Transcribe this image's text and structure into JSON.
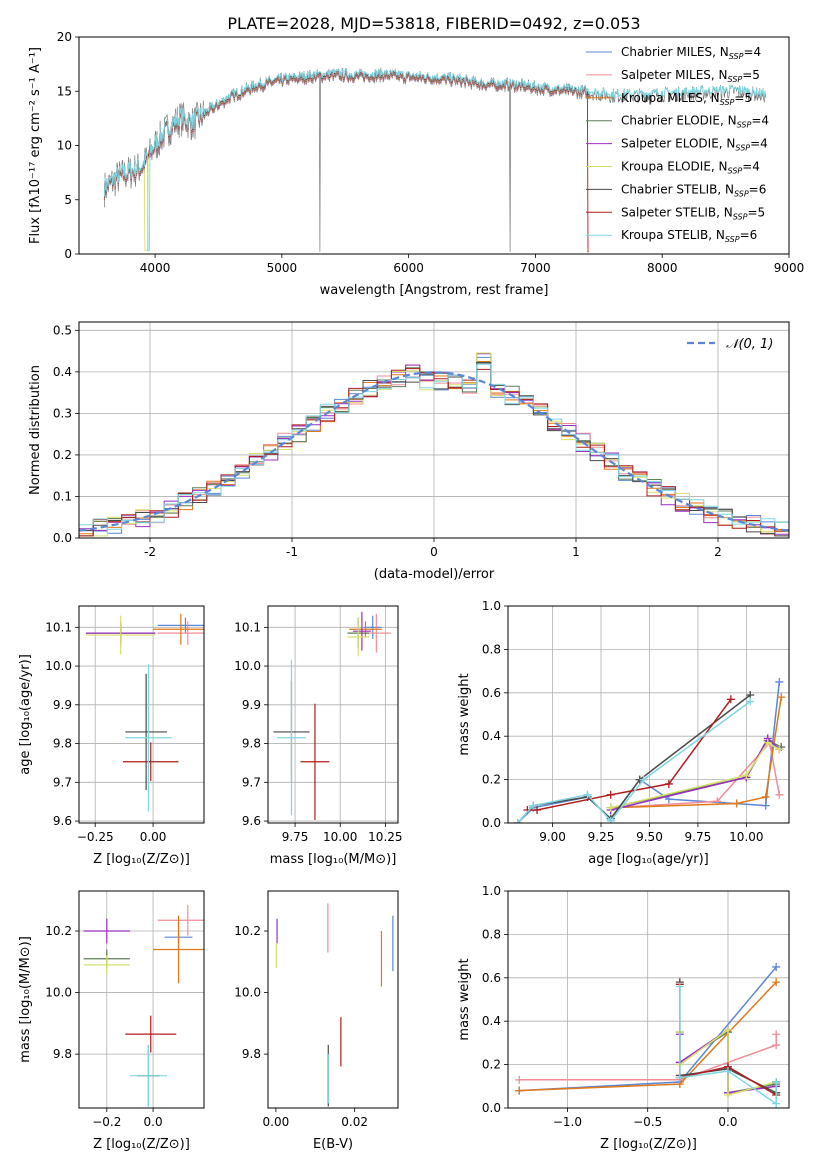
{
  "colors": [
    "#5a87d6",
    "#f08d96",
    "#e0791a",
    "#5f7e5a",
    "#9a2fc2",
    "#d6e06b",
    "#4a4a4a",
    "#b01c1c",
    "#7fd6e2"
  ],
  "chart_data": [
    {
      "id": "spectrum",
      "type": "line",
      "title": "PLATE=2028, MJD=53818, FIBERID=0492, z=0.053",
      "xlabel": "wavelength [Angstrom, rest frame]",
      "ylabel": "Flux [fλ10⁻¹⁷ erg cm⁻² s⁻¹ A⁻¹]",
      "xlim": [
        3400,
        9000
      ],
      "ylim": [
        0,
        20
      ],
      "xticks": [
        4000,
        5000,
        6000,
        7000,
        8000,
        9000
      ],
      "yticks": [
        0,
        5,
        10,
        15,
        20
      ],
      "grid": false,
      "legend_placement": "top-right",
      "observed": {
        "x": [
          3600,
          3700,
          3800,
          3900,
          3950,
          4000,
          4100,
          4200,
          4300,
          4400,
          4600,
          4800,
          5000,
          5200,
          5400,
          5600,
          5800,
          6000,
          6200,
          6400,
          6600,
          6800,
          7000,
          7200,
          7400,
          7600,
          7800,
          8000,
          8200,
          8400,
          8600,
          8800
        ],
        "y": [
          6.0,
          7.0,
          7.5,
          8.0,
          9.0,
          10.0,
          11.5,
          12.5,
          12.0,
          13.0,
          14.5,
          15.5,
          16.0,
          16.3,
          16.5,
          16.4,
          16.5,
          16.3,
          16.2,
          16.0,
          15.6,
          15.6,
          15.3,
          15.1,
          14.9,
          14.6,
          14.6,
          14.7,
          14.8,
          14.9,
          15.0,
          14.6
        ]
      },
      "model_end_x": 7420,
      "series": [
        {
          "name": "Chabrier MILES, N<sub>SSP</sub>=4"
        },
        {
          "name": "Salpeter MILES, N<sub>SSP</sub>=5"
        },
        {
          "name": "Kroupa MILES, N<sub>SSP</sub>=5"
        },
        {
          "name": "Chabrier ELODIE, N<sub>SSP</sub>=4"
        },
        {
          "name": "Salpeter ELODIE, N<sub>SSP</sub>=4"
        },
        {
          "name": "Kroupa ELODIE, N<sub>SSP</sub>=4"
        },
        {
          "name": "Chabrier STELIB, N<sub>SSP</sub>=6"
        },
        {
          "name": "Salpeter STELIB, N<sub>SSP</sub>=5"
        },
        {
          "name": "Kroupa STELIB, N<sub>SSP</sub>=6"
        }
      ],
      "legend_labels": [
        {
          "pre": "Chabrier MILES, N",
          "sub": "SSP",
          "post": "=4"
        },
        {
          "pre": "Salpeter MILES, N",
          "sub": "SSP",
          "post": "=5"
        },
        {
          "pre": "Kroupa MILES, N",
          "sub": "SSP",
          "post": "=5"
        },
        {
          "pre": "Chabrier ELODIE, N",
          "sub": "SSP",
          "post": "=4"
        },
        {
          "pre": "Salpeter ELODIE, N",
          "sub": "SSP",
          "post": "=4"
        },
        {
          "pre": "Kroupa ELODIE, N",
          "sub": "SSP",
          "post": "=4"
        },
        {
          "pre": "Chabrier STELIB, N",
          "sub": "SSP",
          "post": "=6"
        },
        {
          "pre": "Salpeter STELIB, N",
          "sub": "SSP",
          "post": "=5"
        },
        {
          "pre": "Kroupa STELIB, N",
          "sub": "SSP",
          "post": "=6"
        }
      ]
    },
    {
      "id": "residuals",
      "type": "histogram",
      "xlabel": "(data-model)/error",
      "ylabel": "Normed distribution",
      "xlim": [
        -2.5,
        2.5
      ],
      "ylim": [
        0,
        0.52
      ],
      "xticks": [
        -2,
        -1,
        0,
        1,
        2
      ],
      "yticks": [
        0.0,
        0.1,
        0.2,
        0.3,
        0.4,
        0.5
      ],
      "grid": true,
      "bin_width": 0.1,
      "reference": {
        "name": "𝒩(0, 1)",
        "style": "dashed",
        "mean": 0,
        "sigma": 1
      },
      "legend_placement": "top-right"
    },
    {
      "id": "age_vs_Z",
      "type": "errorbar",
      "xlabel": "Z [log₁₀(Z/Z⊙)]",
      "ylabel": "age  [log₁₀(age/yr)]",
      "xlim": [
        -0.32,
        0.22
      ],
      "ylim": [
        9.595,
        10.155
      ],
      "xticks": [
        -0.25,
        0.0
      ],
      "xtick_labels": [
        "−0.25",
        "0.00"
      ],
      "yticks": [
        9.6,
        9.7,
        9.8,
        9.9,
        10.0,
        10.1
      ],
      "grid": true,
      "points": [
        {
          "c": 0,
          "x": 0.14,
          "y": 10.105,
          "xerr": 0.12,
          "yerr": 0.02
        },
        {
          "c": 1,
          "x": 0.15,
          "y": 10.085,
          "xerr": 0.13,
          "yerr": 0.03
        },
        {
          "c": 2,
          "x": 0.12,
          "y": 10.095,
          "xerr": 0.12,
          "yerr": 0.04
        },
        {
          "c": 3,
          "x": -0.14,
          "y": 10.085,
          "xerr": 0.15,
          "yerr": 0.02
        },
        {
          "c": 4,
          "x": -0.14,
          "y": 10.085,
          "xerr": 0.15,
          "yerr": 0.03
        },
        {
          "c": 5,
          "x": -0.14,
          "y": 10.08,
          "xerr": 0.15,
          "yerr": 0.05
        },
        {
          "c": 6,
          "x": -0.03,
          "y": 9.83,
          "xerr": 0.09,
          "yerr": 0.15
        },
        {
          "c": 7,
          "x": -0.01,
          "y": 9.753,
          "xerr": 0.12,
          "yerr": 0.05
        },
        {
          "c": 8,
          "x": -0.02,
          "y": 9.815,
          "xerr": 0.1,
          "yerr": 0.19
        }
      ]
    },
    {
      "id": "age_vs_mass",
      "type": "errorbar",
      "xlabel": "mass [log₁₀(M/M⊙)]",
      "ylabel": "",
      "xlim": [
        9.6,
        10.32
      ],
      "ylim": [
        9.595,
        10.155
      ],
      "xticks": [
        9.75,
        10.0,
        10.25
      ],
      "xtick_labels": [
        "9.75",
        "10.00",
        "10.25"
      ],
      "yticks": [
        9.6,
        9.7,
        9.8,
        9.9,
        10.0,
        10.1
      ],
      "grid": true,
      "points": [
        {
          "c": 0,
          "x": 10.18,
          "y": 10.1,
          "xerr": 0.05,
          "yerr": 0.03
        },
        {
          "c": 1,
          "x": 10.2,
          "y": 10.085,
          "xerr": 0.08,
          "yerr": 0.05
        },
        {
          "c": 2,
          "x": 10.14,
          "y": 10.095,
          "xerr": 0.09,
          "yerr": 0.02
        },
        {
          "c": 3,
          "x": 10.1,
          "y": 10.085,
          "xerr": 0.06,
          "yerr": 0.04
        },
        {
          "c": 4,
          "x": 10.12,
          "y": 10.09,
          "xerr": 0.05,
          "yerr": 0.05
        },
        {
          "c": 5,
          "x": 10.1,
          "y": 10.075,
          "xerr": 0.06,
          "yerr": 0.05
        },
        {
          "c": 6,
          "x": 9.73,
          "y": 9.83,
          "xerr": 0.1,
          "yerr": 0.13
        },
        {
          "c": 7,
          "x": 9.86,
          "y": 9.753,
          "xerr": 0.08,
          "yerr": 0.15
        },
        {
          "c": 8,
          "x": 9.73,
          "y": 9.815,
          "xerr": 0.08,
          "yerr": 0.2
        }
      ]
    },
    {
      "id": "mass_weight_vs_age",
      "type": "line",
      "xlabel": "age  [log₁₀(age/yr)]",
      "ylabel": "mass weight",
      "xlim": [
        8.77,
        10.22
      ],
      "ylim": [
        0,
        1.0
      ],
      "xticks": [
        9.0,
        9.25,
        9.5,
        9.75,
        10.0
      ],
      "xtick_labels": [
        "9.00",
        "9.25",
        "9.50",
        "9.75",
        "10.00"
      ],
      "yticks": [
        0.0,
        0.2,
        0.4,
        0.6,
        0.8,
        1.0
      ],
      "grid": true,
      "series": [
        {
          "c": 0,
          "x": [
            8.82,
            8.9,
            9.18,
            9.3,
            9.45,
            9.6,
            10.1,
            10.17
          ],
          "y": [
            0.0,
            0.07,
            0.12,
            0.02,
            0.2,
            0.11,
            0.08,
            0.65
          ]
        },
        {
          "c": 1,
          "x": [
            9.3,
            9.85,
            10.12,
            10.17
          ],
          "y": [
            0.07,
            0.1,
            0.37,
            0.13
          ]
        },
        {
          "c": 2,
          "x": [
            9.3,
            9.95,
            10.1,
            10.18
          ],
          "y": [
            0.07,
            0.09,
            0.12,
            0.58
          ]
        },
        {
          "c": 3,
          "x": [
            9.3,
            10.0,
            10.11,
            10.18
          ],
          "y": [
            0.07,
            0.21,
            0.38,
            0.35
          ]
        },
        {
          "c": 4,
          "x": [
            9.3,
            10.0,
            10.11,
            10.17
          ],
          "y": [
            0.06,
            0.21,
            0.39,
            0.34
          ]
        },
        {
          "c": 5,
          "x": [
            9.3,
            10.0,
            10.11,
            10.17
          ],
          "y": [
            0.07,
            0.22,
            0.37,
            0.34
          ]
        },
        {
          "c": 6,
          "x": [
            8.82,
            8.9,
            9.18,
            9.3,
            9.45,
            10.02
          ],
          "y": [
            0.0,
            0.08,
            0.12,
            0.02,
            0.2,
            0.59
          ]
        },
        {
          "c": 7,
          "x": [
            8.87,
            8.92,
            9.3,
            9.6,
            9.92
          ],
          "y": [
            0.06,
            0.06,
            0.13,
            0.18,
            0.57
          ]
        },
        {
          "c": 8,
          "x": [
            8.82,
            8.9,
            9.18,
            9.3,
            9.47,
            10.02
          ],
          "y": [
            0.0,
            0.08,
            0.13,
            0.01,
            0.2,
            0.56
          ]
        }
      ]
    },
    {
      "id": "mass_vs_Z",
      "type": "errorbar",
      "xlabel": "Z [log₁₀(Z/Z⊙)]",
      "ylabel": "mass [log₁₀(M/M⊙)]",
      "xlim": [
        -0.32,
        0.22
      ],
      "ylim": [
        9.625,
        10.33
      ],
      "xticks": [
        -0.2,
        0.0
      ],
      "xtick_labels": [
        "−0.2",
        "0.0"
      ],
      "yticks": [
        9.8,
        10.0,
        10.2
      ],
      "grid": true,
      "points": [
        {
          "c": 0,
          "x": 0.11,
          "y": 10.18,
          "xerr": 0.06,
          "yerr": 0.05
        },
        {
          "c": 1,
          "x": 0.15,
          "y": 10.235,
          "xerr": 0.13,
          "yerr": 0.05
        },
        {
          "c": 2,
          "x": 0.11,
          "y": 10.14,
          "xerr": 0.11,
          "yerr": 0.11
        },
        {
          "c": 3,
          "x": -0.2,
          "y": 10.11,
          "xerr": 0.1,
          "yerr": 0.03
        },
        {
          "c": 4,
          "x": -0.2,
          "y": 10.2,
          "xerr": 0.1,
          "yerr": 0.04
        },
        {
          "c": 5,
          "x": -0.2,
          "y": 10.09,
          "xerr": 0.1,
          "yerr": 0.03
        },
        {
          "c": 6,
          "x": -0.02,
          "y": 9.73,
          "xerr": 0.05,
          "yerr": 0.1
        },
        {
          "c": 7,
          "x": -0.01,
          "y": 9.865,
          "xerr": 0.11,
          "yerr": 0.06
        },
        {
          "c": 8,
          "x": -0.02,
          "y": 9.73,
          "xerr": 0.08,
          "yerr": 0.1
        }
      ]
    },
    {
      "id": "mass_vs_EBV",
      "type": "errorbar",
      "xlabel": "E(B-V)",
      "ylabel": "",
      "xlim": [
        -0.002,
        0.031
      ],
      "ylim": [
        9.625,
        10.33
      ],
      "xticks": [
        0.0,
        0.02
      ],
      "xtick_labels": [
        "0.00",
        "0.02"
      ],
      "yticks": [
        9.8,
        10.0,
        10.2
      ],
      "grid": false,
      "points": [
        {
          "c": 0,
          "x": 0.0297,
          "y": 10.16,
          "xerr": 0,
          "yerr": 0.09
        },
        {
          "c": 1,
          "x": 0.0132,
          "y": 10.21,
          "xerr": 0,
          "yerr": 0.08
        },
        {
          "c": 2,
          "x": 0.0268,
          "y": 10.11,
          "xerr": 0,
          "yerr": 0.09
        },
        {
          "c": 4,
          "x": 0.0003,
          "y": 10.2,
          "xerr": 0,
          "yerr": 0.04
        },
        {
          "c": 5,
          "x": 0.0001,
          "y": 10.12,
          "xerr": 0,
          "yerr": 0.04
        },
        {
          "c": 6,
          "x": 0.0133,
          "y": 9.73,
          "xerr": 0,
          "yerr": 0.1
        },
        {
          "c": 7,
          "x": 0.0165,
          "y": 9.84,
          "xerr": 0,
          "yerr": 0.08
        },
        {
          "c": 8,
          "x": 0.0134,
          "y": 9.72,
          "xerr": 0,
          "yerr": 0.08
        }
      ]
    },
    {
      "id": "mass_weight_vs_Z",
      "type": "line",
      "xlabel": "Z [log₁₀(Z/Z⊙)]",
      "ylabel": "mass weight",
      "xlim": [
        -1.37,
        0.38
      ],
      "ylim": [
        0,
        1.0
      ],
      "xticks": [
        -1.0,
        -0.5,
        0.0
      ],
      "xtick_labels": [
        "−1.0",
        "−0.5",
        "0.0"
      ],
      "yticks": [
        0.0,
        0.2,
        0.4,
        0.6,
        0.8,
        1.0
      ],
      "grid": true,
      "series": [
        {
          "c": 0,
          "x": [
            -1.3,
            -0.3,
            0.3
          ],
          "y": [
            0.08,
            0.12,
            0.65
          ]
        },
        {
          "c": 1,
          "x": [
            -1.3,
            -0.3,
            0.3,
            0.3
          ],
          "y": [
            0.13,
            0.13,
            0.29,
            0.34
          ]
        },
        {
          "c": 2,
          "x": [
            -1.3,
            -0.3,
            0.3
          ],
          "y": [
            0.08,
            0.11,
            0.58
          ]
        },
        {
          "c": 3,
          "x": [
            -0.3,
            -0.3,
            0.0,
            0.0,
            0.3
          ],
          "y": [
            0.35,
            0.21,
            0.35,
            0.07,
            0.11
          ]
        },
        {
          "c": 4,
          "x": [
            -0.3,
            -0.3,
            0.0,
            0.0,
            0.3
          ],
          "y": [
            0.34,
            0.21,
            0.36,
            0.07,
            0.1
          ]
        },
        {
          "c": 5,
          "x": [
            -0.3,
            -0.3,
            0.0,
            0.0,
            0.3
          ],
          "y": [
            0.35,
            0.2,
            0.36,
            0.06,
            0.12
          ]
        },
        {
          "c": 6,
          "x": [
            -0.3,
            -0.3,
            0.0,
            0.3,
            0.3
          ],
          "y": [
            0.58,
            0.15,
            0.18,
            0.07,
            0.12
          ]
        },
        {
          "c": 7,
          "x": [
            -0.3,
            -0.3,
            0.0,
            0.3
          ],
          "y": [
            0.57,
            0.14,
            0.19,
            0.06
          ]
        },
        {
          "c": 8,
          "x": [
            -0.3,
            -0.3,
            0.0,
            0.3,
            0.3
          ],
          "y": [
            0.56,
            0.14,
            0.17,
            0.02,
            0.12
          ]
        }
      ]
    }
  ]
}
